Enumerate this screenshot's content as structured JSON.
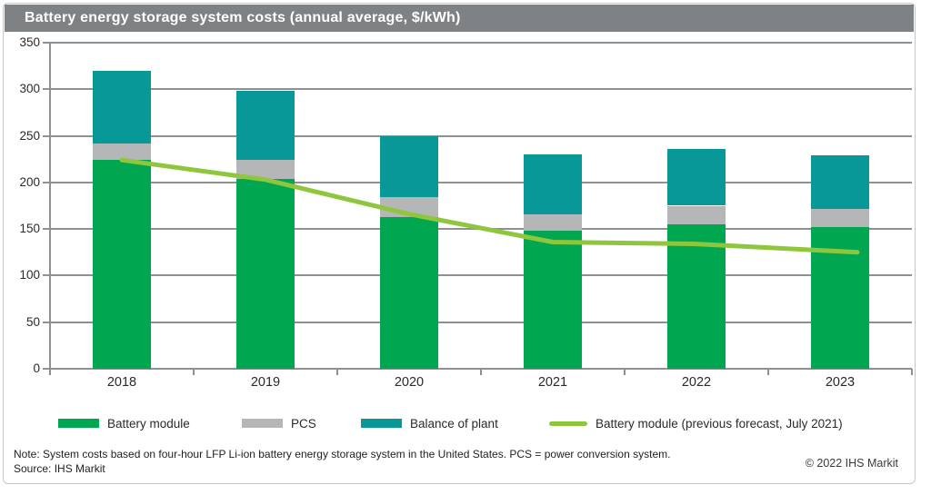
{
  "title": "Battery energy storage system costs (annual average, $/kWh)",
  "note": "Note: System costs based on four-hour LFP Li-ion battery energy storage system in the United States. PCS = power conversion system.",
  "source": "Source: IHS Markit",
  "copyright": "© 2022 IHS Markit",
  "colors": {
    "title_bar": "#7f8285",
    "battery_module": "#00a650",
    "pcs": "#b4b6b8",
    "balance_of_plant": "#089898",
    "forecast_line": "#8ec63e",
    "grid": "#8e9092",
    "axis": "#8e9092",
    "text": "#2a2a2a"
  },
  "chart_data": {
    "type": "bar",
    "stacked": true,
    "title": "Battery energy storage system costs (annual average, $/kWh)",
    "xlabel": "",
    "ylabel": "",
    "categories": [
      "2018",
      "2019",
      "2020",
      "2021",
      "2022",
      "2023"
    ],
    "series": [
      {
        "name": "Battery module",
        "type": "bar",
        "color_key": "battery_module",
        "values": [
          224,
          204,
          163,
          148,
          155,
          152
        ]
      },
      {
        "name": "PCS",
        "type": "bar",
        "color_key": "pcs",
        "values": [
          18,
          20,
          21,
          18,
          20,
          20
        ]
      },
      {
        "name": "Balance of plant",
        "type": "bar",
        "color_key": "balance_of_plant",
        "values": [
          78,
          74,
          66,
          64,
          61,
          57
        ]
      }
    ],
    "totals": [
      320,
      298,
      250,
      230,
      236,
      229
    ],
    "line_series": {
      "name": "Battery module (previous forecast, July 2021)",
      "type": "line",
      "color_key": "forecast_line",
      "values": [
        224,
        203,
        166,
        136,
        134,
        126
      ]
    },
    "ylim": [
      0,
      350
    ],
    "yticks": [
      0,
      50,
      100,
      150,
      200,
      250,
      300,
      350
    ],
    "grid": true,
    "legend_position": "bottom"
  },
  "legend": [
    {
      "label": "Battery module",
      "swatch": "bar",
      "color_key": "battery_module"
    },
    {
      "label": "PCS",
      "swatch": "bar",
      "color_key": "pcs"
    },
    {
      "label": "Balance of plant",
      "swatch": "bar",
      "color_key": "balance_of_plant"
    },
    {
      "label": "Battery module (previous forecast, July 2021)",
      "swatch": "line",
      "color_key": "forecast_line"
    }
  ]
}
